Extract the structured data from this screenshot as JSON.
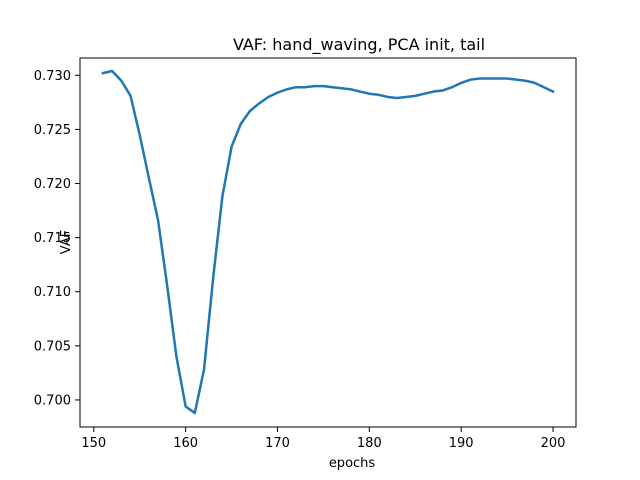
{
  "chart_data": {
    "type": "line",
    "title": "VAF: hand_waving, PCA init, tail",
    "xlabel": "epochs",
    "ylabel": "VAF",
    "xlim": [
      148.5,
      202.5
    ],
    "ylim": [
      0.6975,
      0.7316
    ],
    "x_ticks": [
      150,
      160,
      170,
      180,
      190,
      200
    ],
    "y_ticks": [
      0.7,
      0.705,
      0.71,
      0.715,
      0.72,
      0.725,
      0.73
    ],
    "x_tick_labels": [
      "150",
      "160",
      "170",
      "180",
      "190",
      "200"
    ],
    "y_tick_labels": [
      "0.700",
      "0.705",
      "0.710",
      "0.715",
      "0.720",
      "0.725",
      "0.730"
    ],
    "grid": false,
    "series": [
      {
        "color": "#1f77b4",
        "x": [
          151,
          152,
          153,
          154,
          155,
          156,
          157,
          158,
          159,
          160,
          161,
          162,
          163,
          164,
          165,
          166,
          167,
          168,
          169,
          170,
          171,
          172,
          173,
          174,
          175,
          176,
          177,
          178,
          179,
          180,
          181,
          182,
          183,
          184,
          185,
          186,
          187,
          188,
          189,
          190,
          191,
          192,
          193,
          194,
          195,
          196,
          197,
          198,
          199,
          200
        ],
        "y": [
          0.7302,
          0.7304,
          0.7295,
          0.7281,
          0.7245,
          0.7205,
          0.7166,
          0.7105,
          0.704,
          0.6994,
          0.6988,
          0.7028,
          0.7113,
          0.7188,
          0.7234,
          0.7255,
          0.7267,
          0.7274,
          0.728,
          0.7284,
          0.7287,
          0.7289,
          0.7289,
          0.729,
          0.729,
          0.7289,
          0.7288,
          0.7287,
          0.7285,
          0.7283,
          0.7282,
          0.728,
          0.7279,
          0.728,
          0.7281,
          0.7283,
          0.7285,
          0.7286,
          0.7289,
          0.7293,
          0.7296,
          0.7297,
          0.7297,
          0.7297,
          0.7297,
          0.7296,
          0.7295,
          0.7293,
          0.7289,
          0.7285
        ]
      }
    ]
  }
}
